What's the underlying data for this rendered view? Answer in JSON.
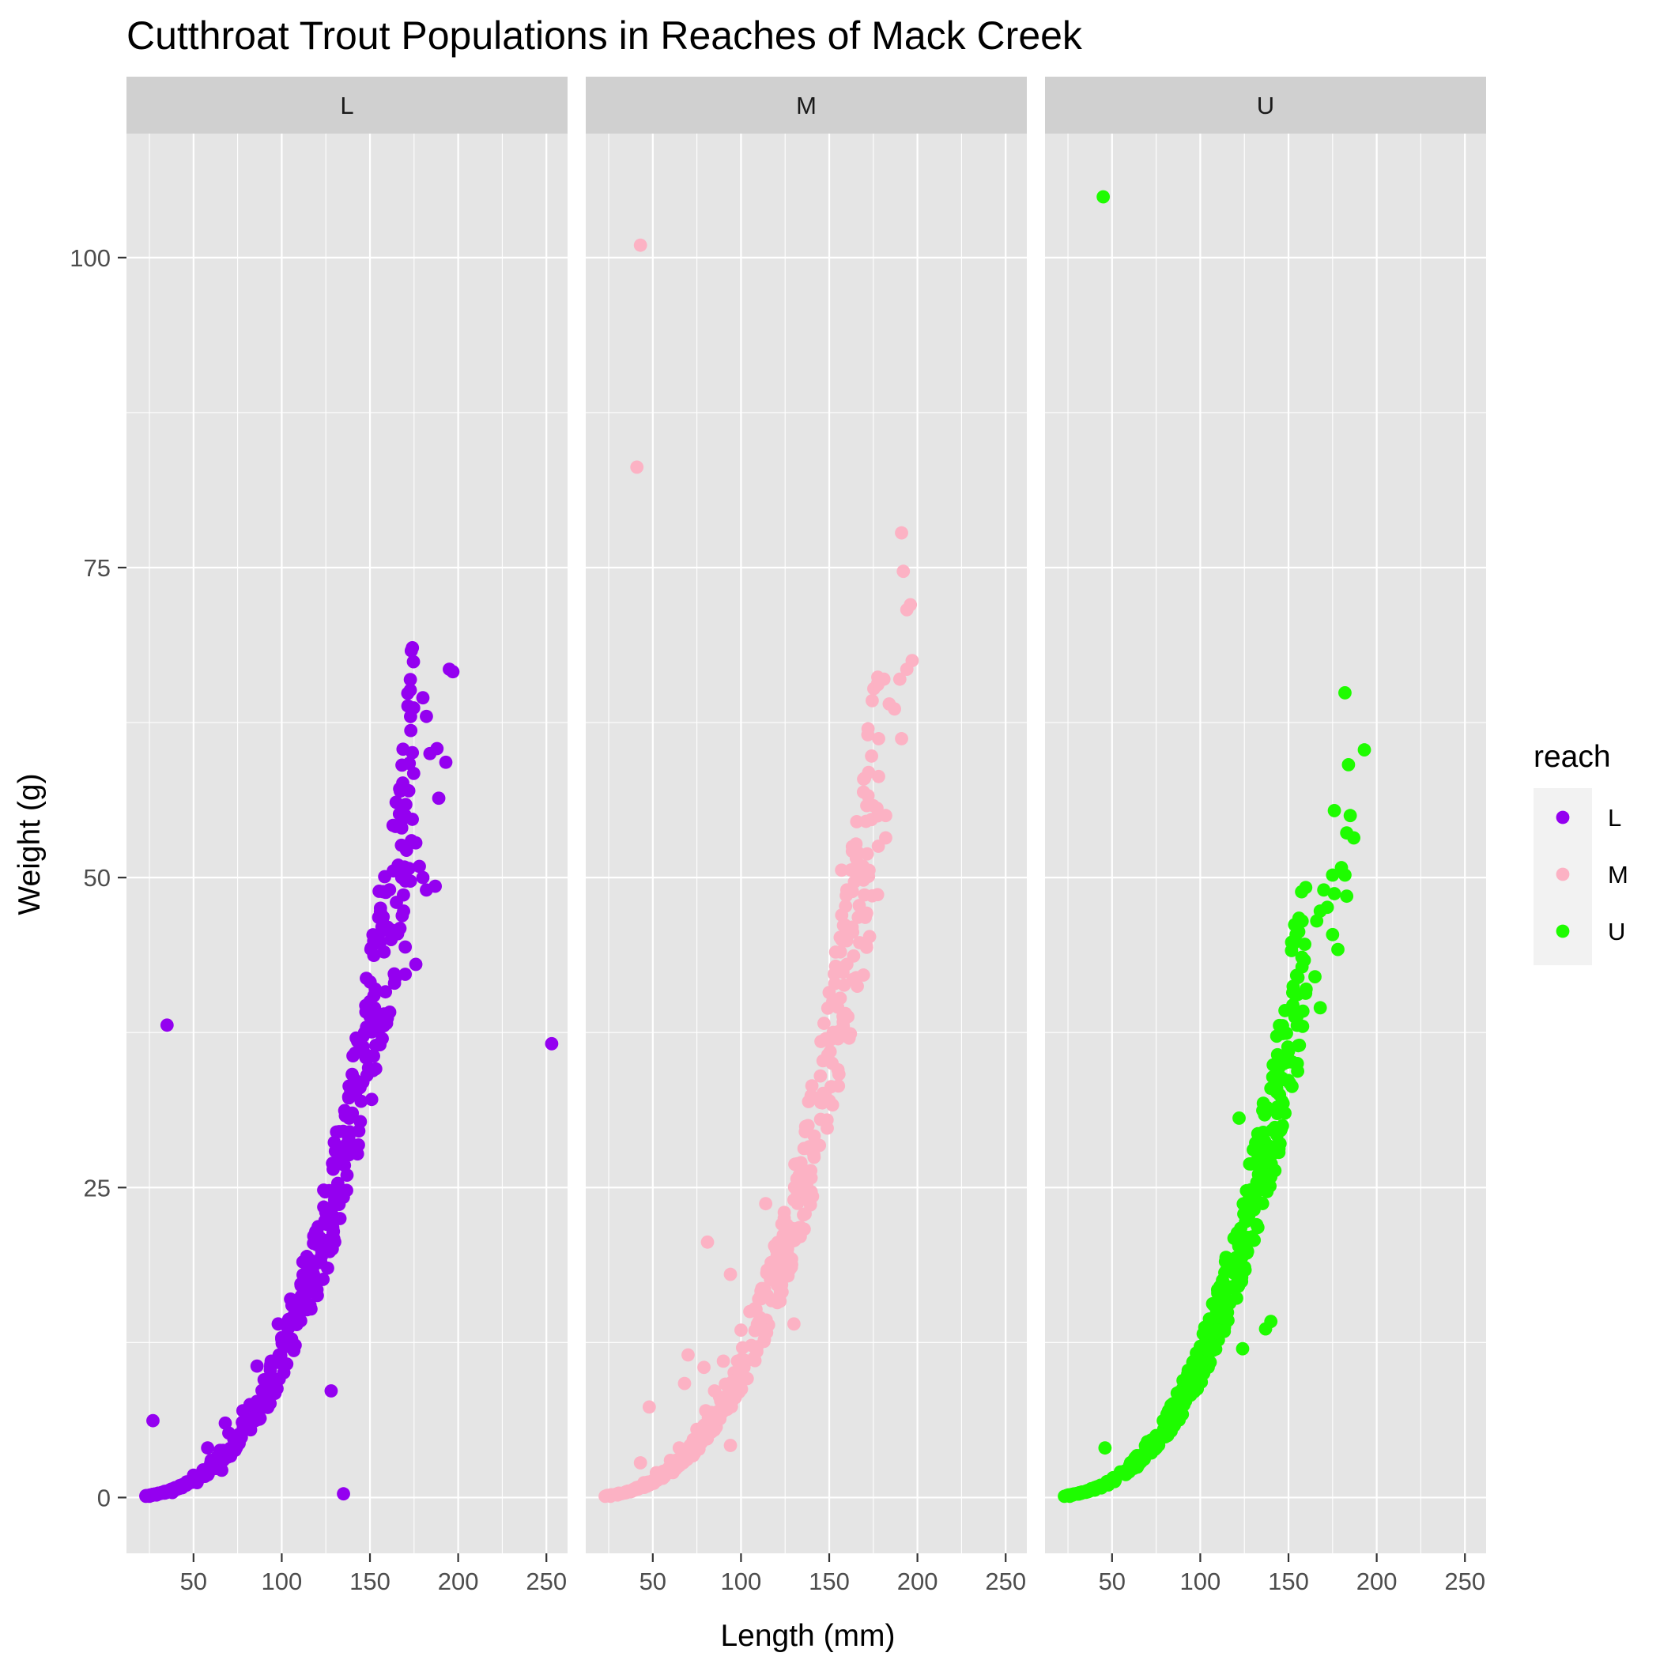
{
  "chart_data": {
    "type": "scatter",
    "title": "Cutthroat Trout Populations in Reaches of Mack Creek",
    "xlabel": "Length (mm)",
    "ylabel": "Weight (g)",
    "xlim": [
      12,
      262
    ],
    "ylim": [
      -4.5,
      110
    ],
    "x_ticks": [
      50,
      100,
      150,
      200,
      250
    ],
    "y_ticks": [
      0,
      25,
      50,
      75,
      100
    ],
    "grid": true,
    "facet_variable": "reach",
    "facets": [
      "L",
      "M",
      "U"
    ],
    "legend": {
      "title": "reach",
      "position": "right",
      "entries": [
        "L",
        "M",
        "U"
      ]
    },
    "colors": {
      "L": "#9400f0",
      "M": "#fcb2c4",
      "U": "#1efc00",
      "panel_background": "#e5e5e5",
      "strip_background": "#d0d0d0",
      "grid_major": "#ffffff"
    },
    "fit_curve": {
      "description": "weight = a * length^3 (main trend of each reach)",
      "a": {
        "L": 1.12e-05,
        "M": 1.04e-05,
        "U": 1.1e-05
      },
      "length_range": {
        "L": [
          23,
          175
        ],
        "M": [
          23,
          178
        ],
        "U": [
          23,
          160
        ]
      }
    },
    "series": [
      {
        "name": "L",
        "points": [
          [
            27,
            6.2
          ],
          [
            35,
            38.1
          ],
          [
            128,
            8.6
          ],
          [
            135,
            0.3
          ],
          [
            86,
            10.6
          ],
          [
            253,
            36.6
          ],
          [
            195,
            66.8
          ],
          [
            197,
            66.6
          ],
          [
            180,
            64.5
          ],
          [
            182,
            63.0
          ],
          [
            184,
            60.0
          ],
          [
            188,
            60.4
          ],
          [
            193,
            59.3
          ],
          [
            189,
            56.4
          ],
          [
            172,
            57.0
          ],
          [
            170,
            55.0
          ],
          [
            168,
            54.0
          ],
          [
            174,
            54.7
          ],
          [
            176,
            52.8
          ],
          [
            178,
            50.9
          ],
          [
            180,
            50.0
          ],
          [
            182,
            49.0
          ],
          [
            187,
            49.3
          ],
          [
            166,
            51.0
          ],
          [
            168,
            50.0
          ],
          [
            165,
            48.0
          ],
          [
            169,
            48.6
          ],
          [
            160,
            46.0
          ],
          [
            162,
            45.0
          ],
          [
            155,
            45.0
          ],
          [
            158,
            44.0
          ],
          [
            167,
            45.9
          ],
          [
            170,
            44.4
          ],
          [
            176,
            43.0
          ],
          [
            170,
            42.2
          ],
          [
            153,
            41.0
          ],
          [
            150,
            40.0
          ],
          [
            145,
            37.0
          ],
          [
            143,
            36.8
          ],
          [
            150,
            38.8
          ],
          [
            158,
            39.0
          ],
          [
            148,
            35.5
          ],
          [
            146,
            33.5
          ],
          [
            140,
            31.0
          ],
          [
            138,
            29.0
          ],
          [
            134,
            27.5
          ],
          [
            137,
            26.0
          ],
          [
            130,
            24.0
          ],
          [
            125,
            23.0
          ],
          [
            133,
            22.5
          ],
          [
            120,
            21.0
          ],
          [
            118,
            20.5
          ],
          [
            112,
            19.0
          ],
          [
            118,
            18.0
          ],
          [
            126,
            18.5
          ],
          [
            105,
            16.0
          ],
          [
            110,
            15.5
          ],
          [
            98,
            14.0
          ],
          [
            94,
            11.0
          ],
          [
            90,
            9.5
          ],
          [
            78,
            7.0
          ],
          [
            82,
            7.5
          ],
          [
            68,
            6.0
          ],
          [
            70,
            5.2
          ],
          [
            60,
            3.0
          ],
          [
            58,
            4.0
          ],
          [
            55,
            2.0
          ],
          [
            65,
            3.8
          ],
          [
            66,
            2.2
          ],
          [
            50,
            1.8
          ],
          [
            52,
            1.2
          ],
          [
            46,
            1.0
          ],
          [
            40,
            0.7
          ],
          [
            38,
            0.4
          ],
          [
            32,
            0.4
          ],
          [
            29,
            0.2
          ],
          [
            25,
            0.1
          ],
          [
            23,
            0.1
          ]
        ]
      },
      {
        "name": "M",
        "points": [
          [
            43,
            101.0
          ],
          [
            41,
            83.1
          ],
          [
            191,
            77.8
          ],
          [
            192,
            74.7
          ],
          [
            196,
            72.0
          ],
          [
            194,
            71.6
          ],
          [
            197,
            67.5
          ],
          [
            194,
            66.8
          ],
          [
            181,
            66.0
          ],
          [
            190,
            66.0
          ],
          [
            184,
            64.0
          ],
          [
            187,
            63.6
          ],
          [
            172,
            62.0
          ],
          [
            178,
            61.2
          ],
          [
            191,
            61.2
          ],
          [
            174,
            59.8
          ],
          [
            170,
            58.0
          ],
          [
            172,
            56.6
          ],
          [
            182,
            55.0
          ],
          [
            182,
            53.2
          ],
          [
            166,
            52.0
          ],
          [
            165,
            50.8
          ],
          [
            157,
            50.6
          ],
          [
            160,
            49.0
          ],
          [
            170,
            48.6
          ],
          [
            168,
            47.0
          ],
          [
            163,
            46.0
          ],
          [
            157,
            45.0
          ],
          [
            160,
            43.0
          ],
          [
            152,
            40.0
          ],
          [
            148,
            37.0
          ],
          [
            158,
            38.0
          ],
          [
            162,
            37.4
          ],
          [
            145,
            34.0
          ],
          [
            150,
            32.0
          ],
          [
            138,
            30.0
          ],
          [
            140,
            28.0
          ],
          [
            133,
            26.0
          ],
          [
            130,
            24.0
          ],
          [
            114,
            23.7
          ],
          [
            126,
            22.0
          ],
          [
            120,
            20.0
          ],
          [
            118,
            19.0
          ],
          [
            81,
            20.6
          ],
          [
            94,
            18.0
          ],
          [
            110,
            16.0
          ],
          [
            105,
            15.0
          ],
          [
            100,
            13.5
          ],
          [
            130,
            14.0
          ],
          [
            90,
            11.0
          ],
          [
            98,
            11.0
          ],
          [
            70,
            11.5
          ],
          [
            79,
            10.5
          ],
          [
            68,
            9.2
          ],
          [
            85,
            8.6
          ],
          [
            80,
            7.0
          ],
          [
            94,
            4.2
          ],
          [
            48,
            7.3
          ],
          [
            75,
            5.5
          ],
          [
            65,
            4.0
          ],
          [
            60,
            3.0
          ],
          [
            57,
            2.0
          ],
          [
            52,
            2.0
          ],
          [
            43,
            2.8
          ],
          [
            45,
            1.2
          ],
          [
            40,
            0.7
          ],
          [
            35,
            0.4
          ],
          [
            30,
            0.2
          ],
          [
            26,
            0.1
          ],
          [
            23,
            0.1
          ]
        ]
      },
      {
        "name": "U",
        "points": [
          [
            45,
            104.9
          ],
          [
            182,
            64.9
          ],
          [
            193,
            60.3
          ],
          [
            184,
            59.1
          ],
          [
            176,
            55.4
          ],
          [
            185,
            55.0
          ],
          [
            183,
            53.6
          ],
          [
            187,
            53.2
          ],
          [
            180,
            50.8
          ],
          [
            175,
            50.2
          ],
          [
            182,
            50.2
          ],
          [
            183,
            48.5
          ],
          [
            170,
            49.0
          ],
          [
            176,
            48.7
          ],
          [
            172,
            47.6
          ],
          [
            166,
            46.5
          ],
          [
            168,
            47.3
          ],
          [
            175,
            45.4
          ],
          [
            178,
            44.2
          ],
          [
            160,
            41.0
          ],
          [
            165,
            42.0
          ],
          [
            168,
            39.5
          ],
          [
            158,
            38.0
          ],
          [
            150,
            36.0
          ],
          [
            155,
            35.0
          ],
          [
            140,
            33.0
          ],
          [
            148,
            31.0
          ],
          [
            122,
            30.6
          ],
          [
            135,
            28.0
          ],
          [
            138,
            26.0
          ],
          [
            128,
            24.0
          ],
          [
            132,
            22.0
          ],
          [
            125,
            20.0
          ],
          [
            120,
            18.0
          ],
          [
            115,
            15.8
          ],
          [
            110,
            13.5
          ],
          [
            140,
            14.2
          ],
          [
            137,
            13.6
          ],
          [
            124,
            12.0
          ],
          [
            105,
            12.0
          ],
          [
            100,
            11.0
          ],
          [
            95,
            9.0
          ],
          [
            88,
            8.5
          ],
          [
            82,
            7.0
          ],
          [
            80,
            6.2
          ],
          [
            75,
            5.0
          ],
          [
            70,
            4.5
          ],
          [
            46,
            4.0
          ],
          [
            65,
            3.2
          ],
          [
            60,
            2.6
          ],
          [
            55,
            2.0
          ],
          [
            50,
            1.5
          ],
          [
            45,
            1.0
          ],
          [
            40,
            0.6
          ],
          [
            35,
            0.5
          ],
          [
            30,
            0.3
          ],
          [
            26,
            0.1
          ],
          [
            23,
            0.1
          ]
        ]
      }
    ]
  }
}
